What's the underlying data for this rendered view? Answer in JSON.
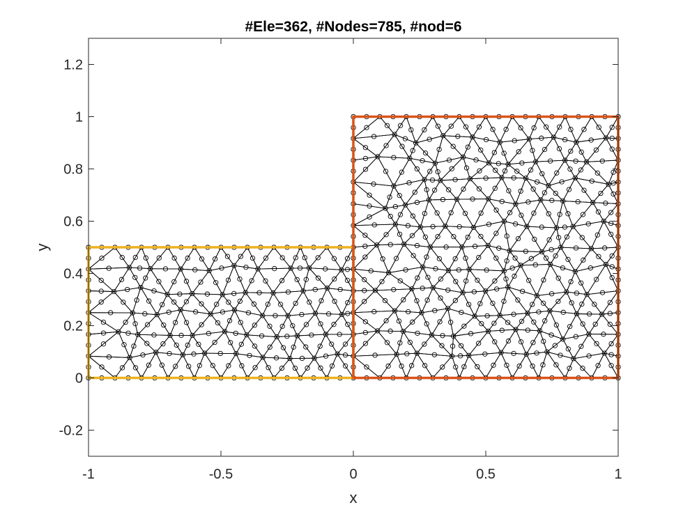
{
  "chart_data": {
    "type": "mesh",
    "title": "#Ele=362, #Nodes=785, #nod=6",
    "xlabel": "x",
    "ylabel": "y",
    "xlim": [
      -1,
      1
    ],
    "ylim": [
      -0.3,
      1.3
    ],
    "xticks": [
      -1,
      -0.5,
      0,
      0.5,
      1
    ],
    "xtick_labels": [
      "-1",
      "-0.5",
      "0",
      "0.5",
      "1"
    ],
    "yticks": [
      -0.2,
      0,
      0.2,
      0.4,
      0.6,
      0.8,
      1,
      1.2
    ],
    "ytick_labels": [
      "-0.2",
      "0",
      "0.2",
      "0.4",
      "0.6",
      "0.8",
      "1",
      "1.2"
    ],
    "grid": false,
    "regions": [
      {
        "color": "#EDB120",
        "vertices": [
          [
            -1,
            0
          ],
          [
            0,
            0
          ],
          [
            0,
            0.5
          ],
          [
            -1,
            0.5
          ]
        ]
      },
      {
        "color": "#D95319",
        "vertices": [
          [
            0,
            0
          ],
          [
            1,
            0
          ],
          [
            1,
            1
          ],
          [
            0,
            1
          ]
        ]
      }
    ],
    "mesh": {
      "elements": 362,
      "nodes": 785,
      "nodes_per_element": 6,
      "element_type": "quadratic triangle"
    }
  }
}
